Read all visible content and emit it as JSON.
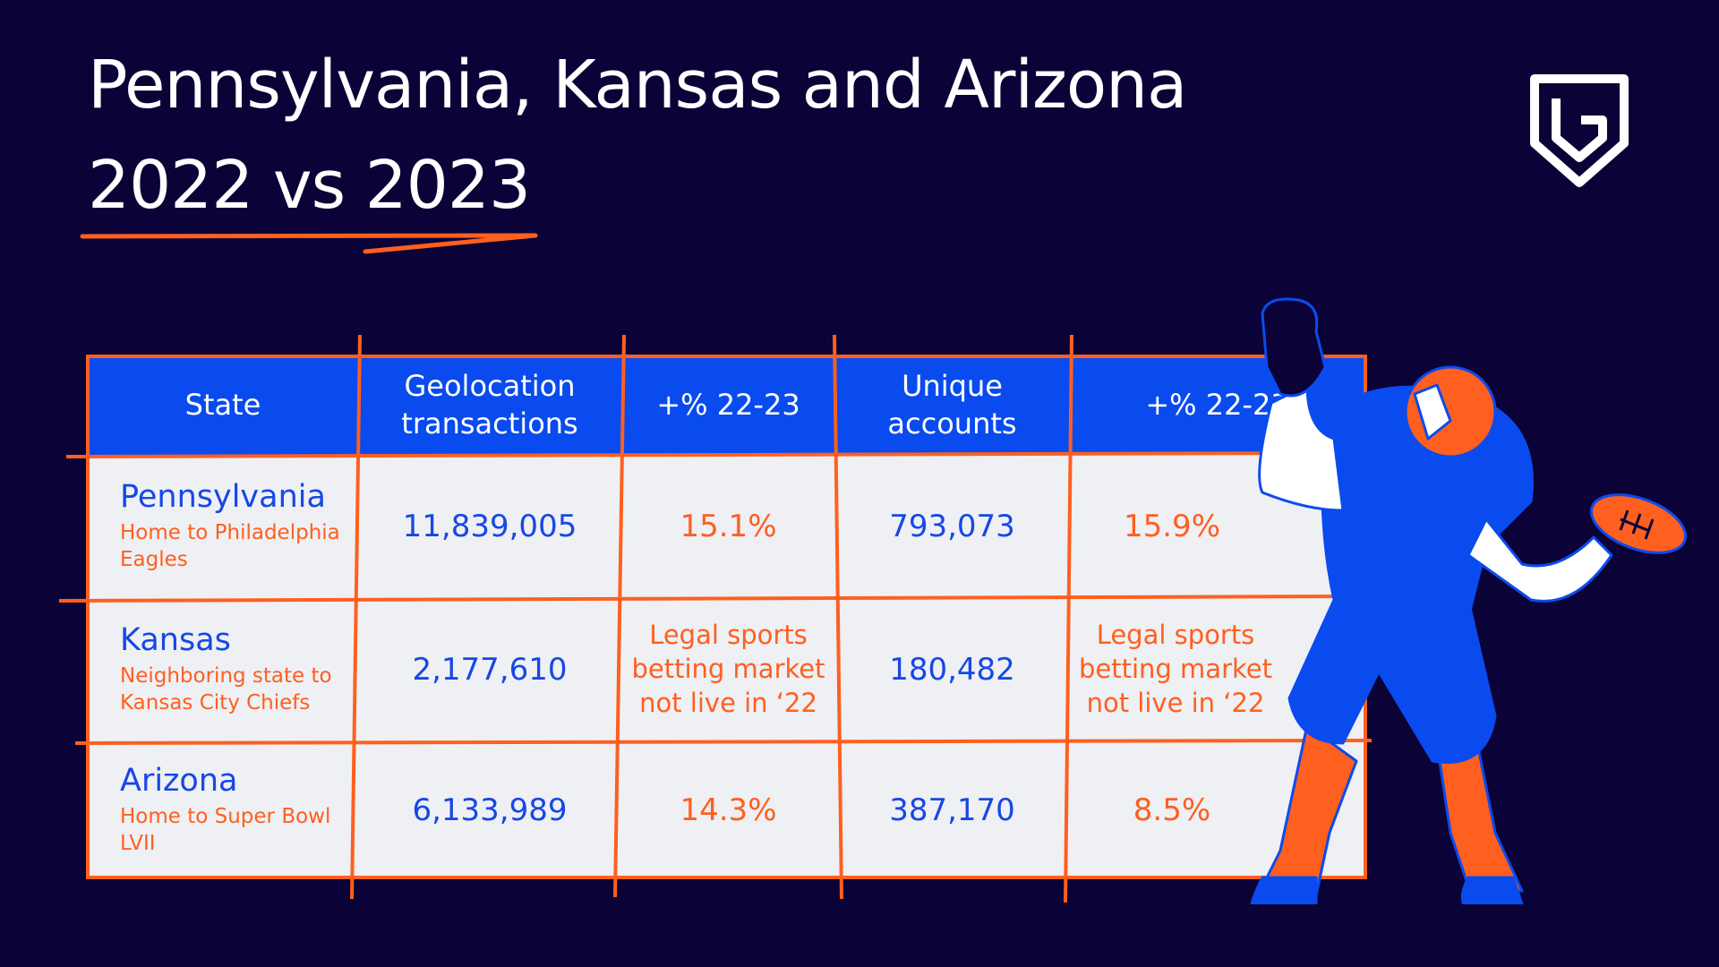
{
  "title": {
    "line1": "Pennsylvania, Kansas and Arizona",
    "line2": "2022 vs 2023"
  },
  "colors": {
    "background": "#0b0337",
    "header": "#0a4bef",
    "accent": "#ff5f1f",
    "cell": "#eef0f4",
    "text_blue": "#1747e6"
  },
  "logo": {
    "icon": "shield-g-logo"
  },
  "table": {
    "headers": [
      "State",
      "Geolocation transactions",
      "+% 22-23",
      "Unique accounts",
      "+% 22-23"
    ],
    "rows": [
      {
        "state": "Pennsylvania",
        "note": "Home to Philadelphia Eagles",
        "geo": "11,839,005",
        "geo_pct": "15.1%",
        "accounts": "793,073",
        "acc_pct": "15.9%"
      },
      {
        "state": "Kansas",
        "note": "Neighboring state to Kansas City Chiefs",
        "geo": "2,177,610",
        "geo_pct": "Legal sports betting market not live in ‘22",
        "accounts": "180,482",
        "acc_pct": "Legal sports betting market not live in ‘22"
      },
      {
        "state": "Arizona",
        "note": "Home to Super Bowl LVII",
        "geo": "6,133,989",
        "geo_pct": "14.3%",
        "accounts": "387,170",
        "acc_pct": "8.5%"
      }
    ]
  },
  "illustration": {
    "icon": "football-player-illustration"
  }
}
